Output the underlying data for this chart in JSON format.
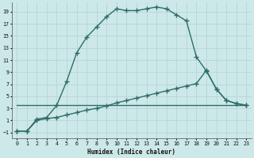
{
  "xlabel": "Humidex (Indice chaleur)",
  "bg_color": "#cde8e8",
  "grid_color": "#b8d8d8",
  "line_color": "#2d6e65",
  "xlim": [
    -0.5,
    23.5
  ],
  "ylim": [
    -2,
    20.5
  ],
  "xticks": [
    0,
    1,
    2,
    3,
    4,
    5,
    6,
    7,
    8,
    9,
    10,
    11,
    12,
    13,
    14,
    15,
    16,
    17,
    18,
    19,
    20,
    21,
    22,
    23
  ],
  "yticks": [
    -1,
    1,
    3,
    5,
    7,
    9,
    11,
    13,
    15,
    17,
    19
  ],
  "curve1_x": [
    0,
    1,
    2,
    3,
    4,
    5,
    6,
    7,
    8,
    9,
    10,
    11,
    12,
    13,
    14,
    15,
    16,
    17,
    18,
    19,
    20,
    21,
    22,
    23
  ],
  "curve1_y": [
    -0.8,
    -0.8,
    1.2,
    1.5,
    3.5,
    7.5,
    12.2,
    14.8,
    16.5,
    18.2,
    19.5,
    19.2,
    19.2,
    19.5,
    19.8,
    19.5,
    18.5,
    17.5,
    11.5,
    9.2,
    6.2,
    4.3,
    3.8,
    3.5
  ],
  "curve2_x": [
    0,
    1,
    2,
    3,
    4,
    5,
    6,
    7,
    8,
    9,
    10,
    11,
    12,
    13,
    14,
    15,
    16,
    17,
    18,
    19,
    20,
    21,
    22,
    23
  ],
  "curve2_y": [
    -0.8,
    -0.8,
    1.0,
    1.3,
    1.5,
    1.9,
    2.3,
    2.7,
    3.0,
    3.4,
    3.9,
    4.3,
    4.7,
    5.1,
    5.5,
    5.9,
    6.3,
    6.7,
    7.1,
    9.3,
    6.2,
    4.3,
    3.8,
    3.5
  ],
  "curve3_x": [
    0,
    23
  ],
  "curve3_y": [
    3.5,
    3.5
  ],
  "marker": "+",
  "markersize": 4,
  "linewidth": 1.0
}
